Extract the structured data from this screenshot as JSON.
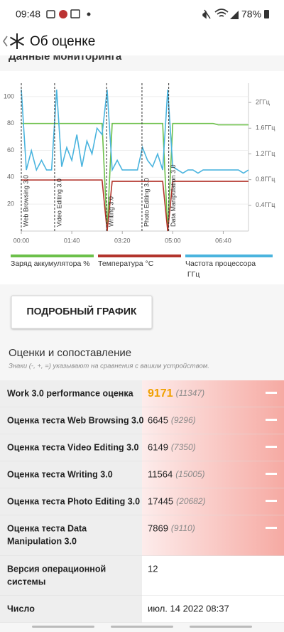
{
  "status_bar": {
    "time": "09:48",
    "battery": "78%"
  },
  "app_bar": {
    "title": "Об оценке"
  },
  "section_monitoring": {
    "title": "Данные мониторинга"
  },
  "chart_data": {
    "type": "line",
    "x": [
      0,
      10,
      20,
      30,
      40,
      50,
      60,
      70,
      80,
      90,
      100,
      110,
      120,
      130,
      140,
      150,
      160,
      170,
      180,
      190,
      200,
      210,
      220,
      230,
      240,
      250,
      260,
      270,
      280,
      290,
      300,
      310,
      320,
      330,
      340,
      350,
      360,
      370,
      380,
      390,
      400,
      410,
      420,
      430,
      440,
      450
    ],
    "xlim": [
      0,
      450
    ],
    "xticks": [
      {
        "value": 0,
        "label": "00:00"
      },
      {
        "value": 100,
        "label": "01:40"
      },
      {
        "value": 200,
        "label": "03:20"
      },
      {
        "value": 300,
        "label": "05:00"
      },
      {
        "value": 400,
        "label": "06:40"
      }
    ],
    "ylim": [
      0,
      110
    ],
    "yticks": [
      20,
      40,
      60,
      80,
      100
    ],
    "y2lim": [
      0,
      2.3
    ],
    "y2ticks": [
      {
        "value": 0.4,
        "label": "0.4ГГц"
      },
      {
        "value": 0.8,
        "label": "0.8ГГц"
      },
      {
        "value": 1.2,
        "label": "1.2ГГц"
      },
      {
        "value": 1.6,
        "label": "1.6ГГц"
      },
      {
        "value": 2,
        "label": "2ГГц"
      }
    ],
    "series": [
      {
        "name": "Заряд аккумулятора %",
        "color": "#6cc04a",
        "values": [
          80,
          80,
          80,
          80,
          80,
          80,
          80,
          80,
          80,
          80,
          80,
          80,
          80,
          80,
          80,
          80,
          80,
          0,
          80,
          80,
          80,
          80,
          80,
          80,
          80,
          80,
          80,
          80,
          80,
          0,
          80,
          80,
          80,
          80,
          80,
          80,
          80,
          80,
          80,
          79,
          79,
          79,
          79,
          79,
          79,
          79
        ]
      },
      {
        "name": "Температура °C",
        "color": "#b2342c",
        "values": [
          38,
          38,
          38,
          38,
          38,
          38,
          38,
          38,
          38,
          38,
          38,
          38,
          38,
          38,
          38,
          38,
          38,
          0,
          37,
          37,
          37,
          37,
          37,
          37,
          37,
          37,
          37,
          37,
          37,
          0,
          37,
          37,
          37,
          37,
          37,
          37,
          37,
          37,
          37,
          37,
          37,
          37,
          37,
          37,
          37,
          37
        ]
      },
      {
        "name": "Частота процессора ГГц",
        "color": "#4ab4de",
        "axis": "y2",
        "values": [
          2.2,
          0.95,
          1.25,
          0.95,
          1.1,
          0.95,
          0.95,
          2.2,
          1.0,
          1.3,
          1.1,
          1.5,
          1.0,
          1.4,
          1.2,
          1.6,
          1.5,
          2.2,
          0.95,
          1.1,
          0.95,
          0.95,
          0.95,
          0.95,
          1.3,
          1.1,
          1.0,
          1.2,
          0.95,
          2.2,
          1.0,
          0.95,
          0.9,
          0.95,
          0.95,
          0.9,
          0.95,
          0.95,
          0.95,
          0.95,
          0.95,
          0.95,
          0.95,
          0.95,
          0.9,
          0.95
        ]
      }
    ],
    "markers": [
      {
        "label": "Web Browsing 3.0",
        "x": 0
      },
      {
        "label": "Video Editing 3.0",
        "x": 66
      },
      {
        "label": "Writing 3.0",
        "x": 169
      },
      {
        "label": "Photo Editing 3.0",
        "x": 239
      },
      {
        "label": "Data Manipulation 3.0",
        "x": 292
      }
    ]
  },
  "button": {
    "label": "ПОДРОБНЫЙ ГРАФИК"
  },
  "scores": {
    "title": "Оценки и сопоставление",
    "note": "Знаки (-, +, =) указывают на сравнения с вашим устройством.",
    "rows": [
      {
        "label": [
          "Work 3.0 performance оценка"
        ],
        "value": "9171",
        "compare": "(11347)"
      },
      {
        "label": [
          "Оценка теста Web Browsing 3.0"
        ],
        "value": "6645",
        "compare": "(9296)"
      },
      {
        "label": [
          "Оценка теста Video Editing 3.0"
        ],
        "value": "6149",
        "compare": "(7350)"
      },
      {
        "label": [
          "Оценка теста Writing 3.0"
        ],
        "value": "11564",
        "compare": "(15005)"
      },
      {
        "label": [
          "Оценка теста Photo Editing 3.0"
        ],
        "value": "17445",
        "compare": "(20682)"
      },
      {
        "label": [
          "Оценка теста Data",
          "Manipulation 3.0"
        ],
        "value": "7869",
        "compare": "(9110)"
      },
      {
        "label": [
          "Версия операционной",
          "системы"
        ],
        "value": "12"
      },
      {
        "label": [
          "Число"
        ],
        "value": "июл. 14 2022 08:37"
      }
    ]
  }
}
